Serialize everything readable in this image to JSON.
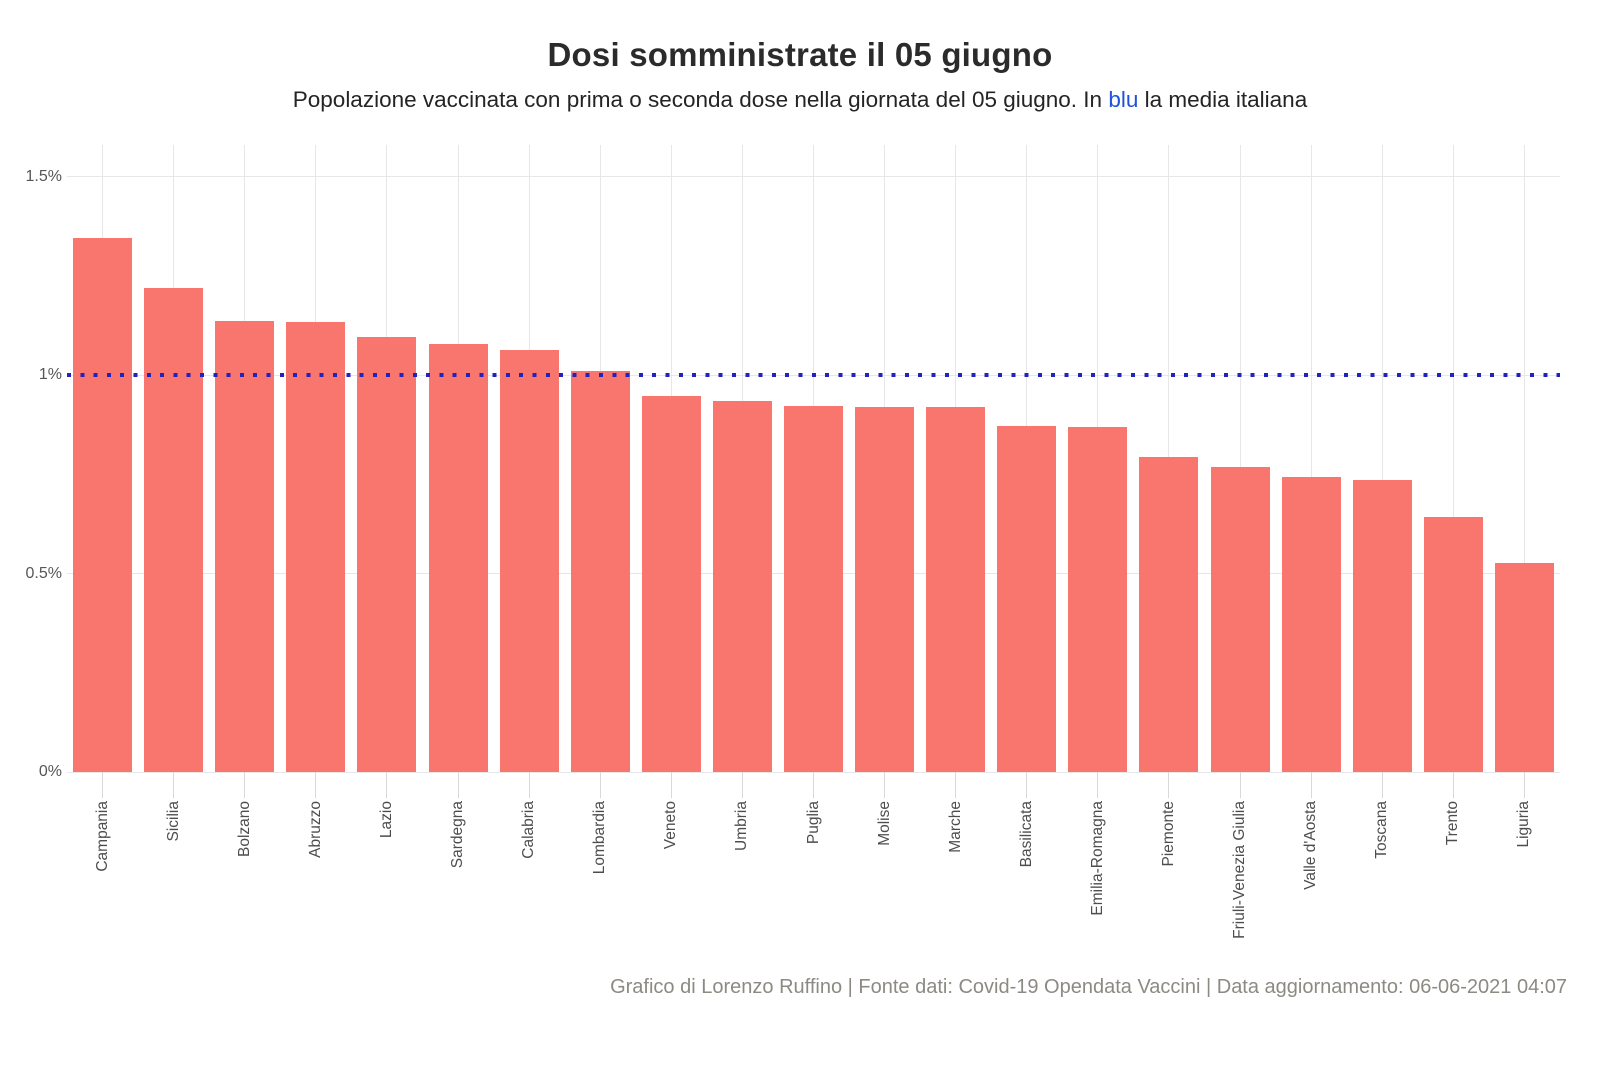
{
  "page": {
    "title": "Dosi somministrate il 05 giugno",
    "subtitle_before": "Popolazione vaccinata con prima o seconda dose nella giornata del 05 giugno. In ",
    "subtitle_highlight": "blu",
    "subtitle_after": " la media italiana",
    "footer": "Grafico di Lorenzo Ruffino | Fonte dati: Covid-19 Opendata Vaccini | Data aggiornamento: 06-06-2021 04:07"
  },
  "chart_data": {
    "type": "bar",
    "title": "Dosi somministrate il 05 giugno",
    "subtitle": "Popolazione vaccinata con prima o seconda dose nella giornata del 05 giugno. In blu la media italiana",
    "xlabel": "",
    "ylabel": "",
    "unit": "%",
    "categories": [
      "Campania",
      "Sicilia",
      "Bolzano",
      "Abruzzo",
      "Lazio",
      "Sardegna",
      "Calabria",
      "Lombardia",
      "Veneto",
      "Umbria",
      "Puglia",
      "Molise",
      "Marche",
      "Basilicata",
      "Emilia-Romagna",
      "Piemonte",
      "Friuli-Venezia Giulia",
      "Valle d'Aosta",
      "Toscana",
      "Trento",
      "Liguria"
    ],
    "values": [
      1.345,
      1.22,
      1.136,
      1.134,
      1.096,
      1.078,
      1.063,
      1.012,
      0.947,
      0.934,
      0.922,
      0.92,
      0.919,
      0.871,
      0.869,
      0.794,
      0.768,
      0.744,
      0.736,
      0.643,
      0.527
    ],
    "ylim": [
      0,
      1.58
    ],
    "yticks": [
      {
        "value": 0,
        "label": "0%"
      },
      {
        "value": 0.5,
        "label": "0.5%"
      },
      {
        "value": 1,
        "label": "1%"
      },
      {
        "value": 1.5,
        "label": "1.5%"
      }
    ],
    "average_line": {
      "value": 1.0,
      "style": "dotted",
      "label": "media italiana"
    },
    "grid": true,
    "legend": "none",
    "bar_color": "#F8766D",
    "average_line_color": "#2222BC"
  },
  "colors": {
    "bar": "#F8766D",
    "average_line": "#2222BC",
    "subtitle_highlight": "#2152D9",
    "grid": "#E7E7E7",
    "axis_text": "#4D4D4D",
    "footer_text": "#8C8A82",
    "background": "#FFFFFF"
  }
}
